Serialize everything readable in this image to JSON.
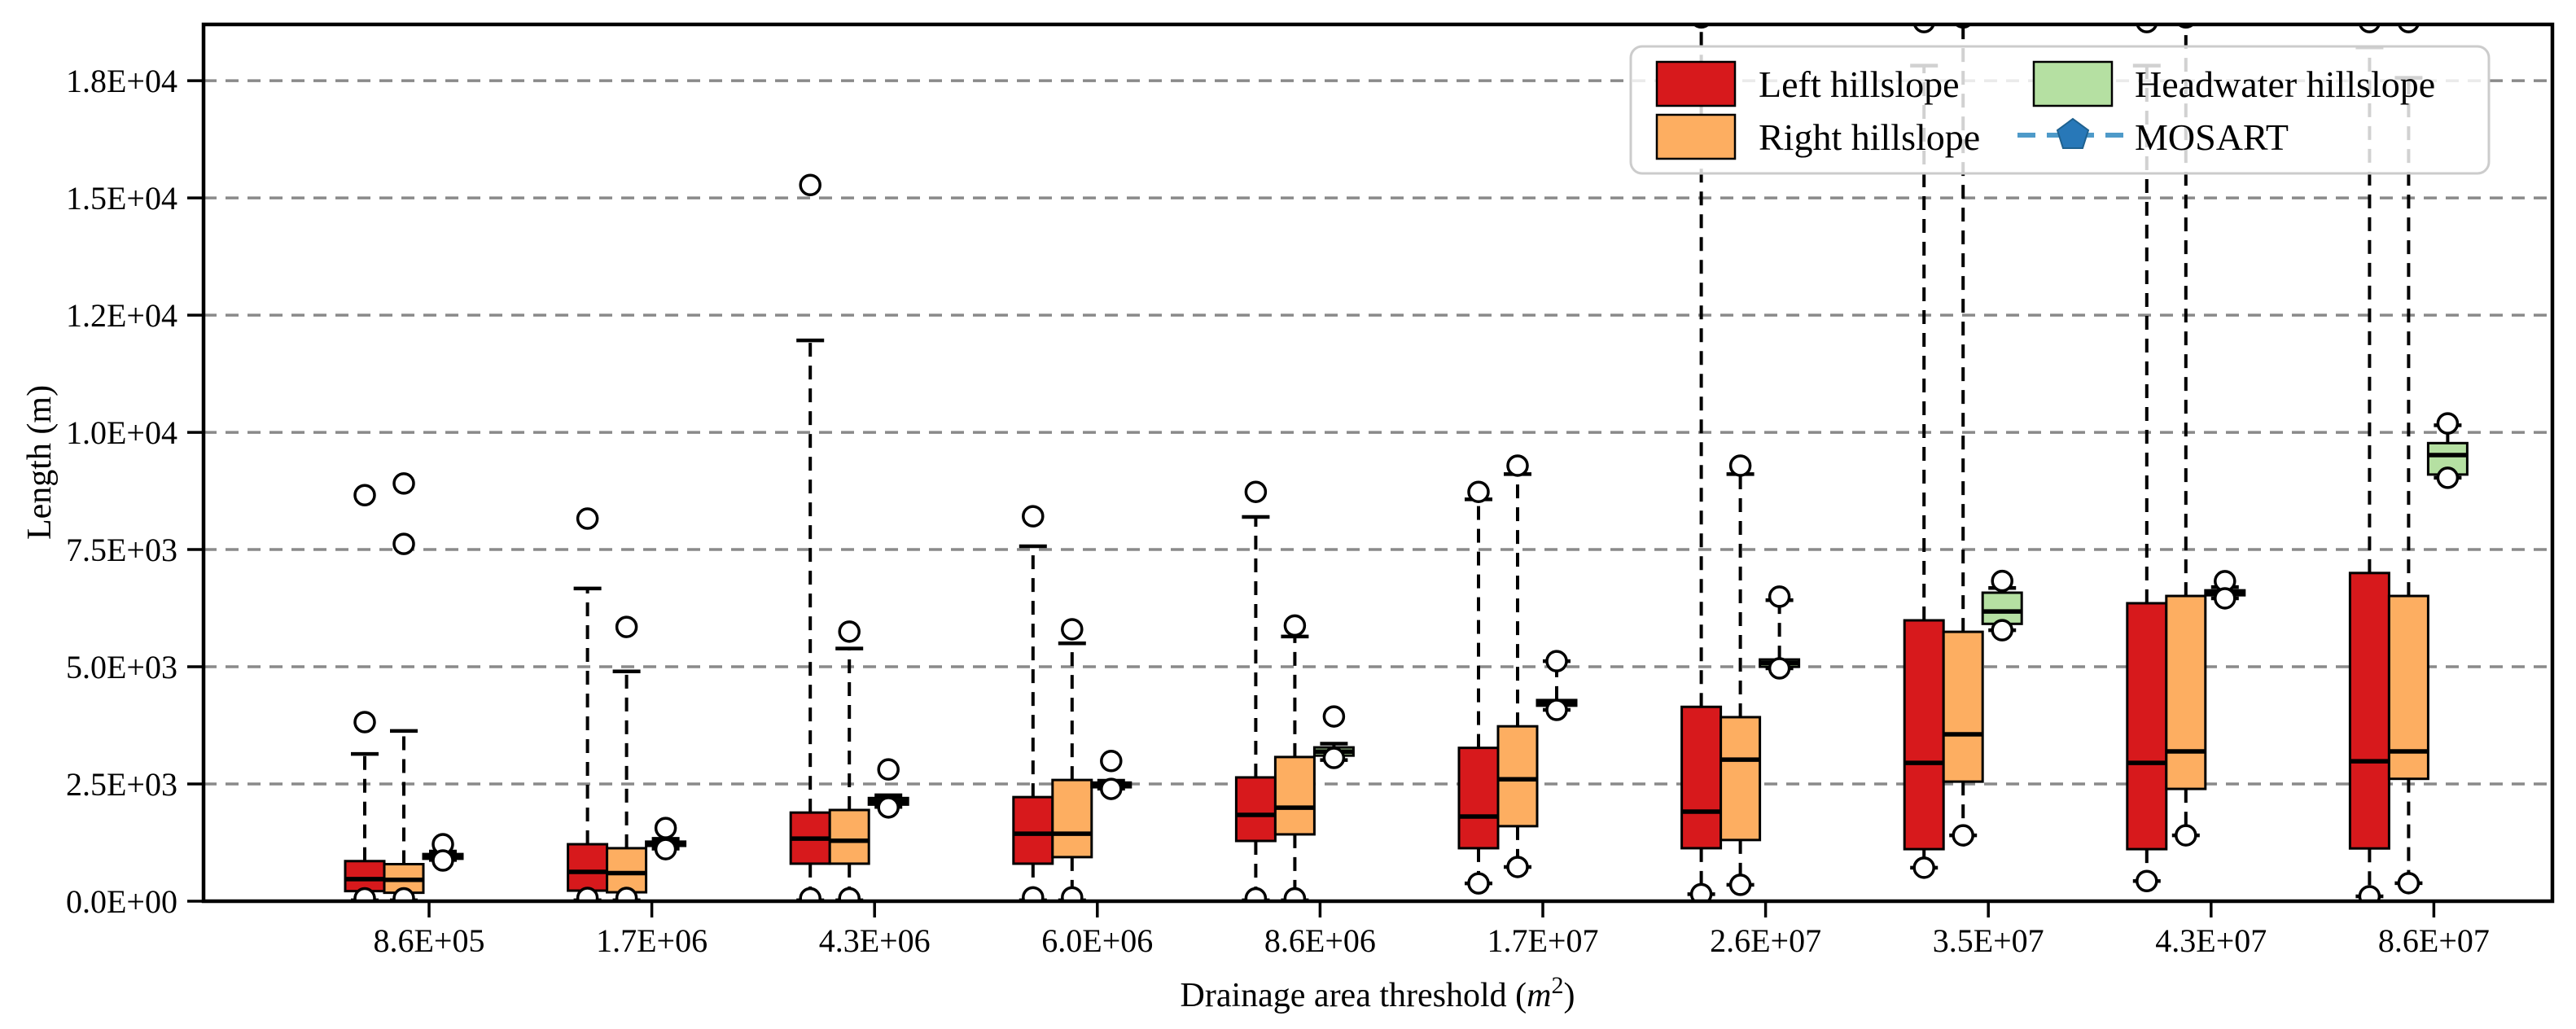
{
  "figure": {
    "background": "#ffffff",
    "frame_color": "#000000",
    "grid_color": "#8a8a8a"
  },
  "labels": {
    "ylabel": "Length (m)",
    "xlabel_prefix": "Drainage area threshold (",
    "xlabel_var": "m",
    "xlabel_sup": "2",
    "xlabel_close": ")"
  },
  "legend": {
    "items": [
      {
        "label": "Left hillslope",
        "swatch": "red-box-swatch",
        "color": "#d7191c"
      },
      {
        "label": "Right hillslope",
        "swatch": "orange-box-swatch",
        "color": "#fdae61"
      },
      {
        "label": "Headwater hillslope",
        "swatch": "green-box-swatch",
        "color": "#b5e0a2"
      },
      {
        "label": "MOSART",
        "swatch": "pentagon-marker",
        "color": "#2878b8",
        "line_color": "#4e9ac9"
      }
    ]
  },
  "chart_data": {
    "type": "boxplot",
    "title": "",
    "xlabel": "Drainage area threshold (m2)",
    "ylabel": "Length (m)",
    "ylim": [
      0,
      18700
    ],
    "grid": true,
    "legend_position": "upper right",
    "yticks": [
      {
        "v": 0,
        "label": "0.0E+00"
      },
      {
        "v": 2500,
        "label": "2.5E+03"
      },
      {
        "v": 5000,
        "label": "5.0E+03"
      },
      {
        "v": 7500,
        "label": "7.5E+03"
      },
      {
        "v": 10000,
        "label": "1.0E+04"
      },
      {
        "v": 12500,
        "label": "1.2E+04"
      },
      {
        "v": 15000,
        "label": "1.5E+04"
      },
      {
        "v": 17500,
        "label": "1.8E+04"
      }
    ],
    "categories": [
      "8.6E+05",
      "1.7E+06",
      "4.3E+06",
      "6.0E+06",
      "8.6E+06",
      "1.7E+07",
      "2.6E+07",
      "3.5E+07",
      "4.3E+07",
      "8.6E+07"
    ],
    "series": [
      {
        "name": "Left hillslope",
        "color": "#d7191c",
        "offset": -79,
        "boxes": [
          {
            "lo": 20,
            "q1": 215,
            "med": 470,
            "q3": 855,
            "hi": 3140,
            "fliers": [
              3820,
              8660,
              60
            ]
          },
          {
            "lo": 20,
            "q1": 225,
            "med": 625,
            "q3": 1215,
            "hi": 6670,
            "fliers": [
              8160,
              70
            ]
          },
          {
            "lo": 20,
            "q1": 800,
            "med": 1335,
            "q3": 1890,
            "hi": 11960,
            "fliers": [
              15275,
              60
            ]
          },
          {
            "lo": 20,
            "q1": 800,
            "med": 1440,
            "q3": 2220,
            "hi": 7570,
            "fliers": [
              8210,
              80
            ]
          },
          {
            "lo": 20,
            "q1": 1285,
            "med": 1840,
            "q3": 2640,
            "hi": 8195,
            "fliers": [
              8730,
              60
            ]
          },
          {
            "lo": 380,
            "q1": 1130,
            "med": 1805,
            "q3": 3270,
            "hi": 8570,
            "fliers": [
              8730,
              380
            ]
          },
          {
            "lo": 150,
            "q1": 1130,
            "med": 1910,
            "q3": 4145,
            "hi": 18720,
            "fliers": [
              18850,
              150
            ]
          },
          {
            "lo": 715,
            "q1": 1110,
            "med": 2950,
            "q3": 5990,
            "hi": 17820,
            "fliers": [
              18750,
              715
            ]
          },
          {
            "lo": 430,
            "q1": 1110,
            "med": 2950,
            "q3": 6355,
            "hi": 17820,
            "fliers": [
              18750,
              430
            ]
          },
          {
            "lo": 105,
            "q1": 1125,
            "med": 2985,
            "q3": 7000,
            "hi": 18210,
            "fliers": [
              18750,
              105
            ]
          }
        ]
      },
      {
        "name": "Right hillslope",
        "color": "#fdae61",
        "offset": -31,
        "boxes": [
          {
            "lo": 20,
            "q1": 180,
            "med": 455,
            "q3": 790,
            "hi": 3630,
            "fliers": [
              7620,
              8910,
              60
            ]
          },
          {
            "lo": 20,
            "q1": 190,
            "med": 600,
            "q3": 1130,
            "hi": 4900,
            "fliers": [
              5850,
              70
            ]
          },
          {
            "lo": 20,
            "q1": 800,
            "med": 1290,
            "q3": 1945,
            "hi": 5390,
            "fliers": [
              5750,
              60
            ]
          },
          {
            "lo": 20,
            "q1": 940,
            "med": 1440,
            "q3": 2585,
            "hi": 5500,
            "fliers": [
              5800,
              80
            ]
          },
          {
            "lo": 20,
            "q1": 1425,
            "med": 1995,
            "q3": 3075,
            "hi": 5645,
            "fliers": [
              5880,
              60
            ]
          },
          {
            "lo": 730,
            "q1": 1600,
            "med": 2600,
            "q3": 3730,
            "hi": 9110,
            "fliers": [
              9290,
              730
            ]
          },
          {
            "lo": 350,
            "q1": 1305,
            "med": 3020,
            "q3": 3925,
            "hi": 9110,
            "fliers": [
              9290,
              350
            ]
          },
          {
            "lo": 1405,
            "q1": 2550,
            "med": 3560,
            "q3": 5745,
            "hi": 18720,
            "fliers": [
              18850,
              1405
            ]
          },
          {
            "lo": 1405,
            "q1": 2395,
            "med": 3195,
            "q3": 6510,
            "hi": 18720,
            "fliers": [
              18850,
              1405
            ]
          },
          {
            "lo": 385,
            "q1": 2610,
            "med": 3195,
            "q3": 6510,
            "hi": 17560,
            "fliers": [
              18750,
              385
            ]
          }
        ]
      },
      {
        "name": "Headwater hillslope",
        "color": "#b5e0a2",
        "offset": 17,
        "boxes": [
          {
            "lo": 880,
            "q1": 905,
            "med": 950,
            "q3": 1005,
            "hi": 1060,
            "fliers": [
              1215,
              868
            ]
          },
          {
            "lo": 1120,
            "q1": 1180,
            "med": 1230,
            "q3": 1270,
            "hi": 1330,
            "fliers": [
              1560,
              1110
            ]
          },
          {
            "lo": 2010,
            "q1": 2060,
            "med": 2130,
            "q3": 2200,
            "hi": 2260,
            "fliers": [
              2810,
              2000
            ]
          },
          {
            "lo": 2400,
            "q1": 2430,
            "med": 2480,
            "q3": 2530,
            "hi": 2570,
            "fliers": [
              2990,
              2395
            ]
          },
          {
            "lo": 3010,
            "q1": 3105,
            "med": 3190,
            "q3": 3280,
            "hi": 3360,
            "fliers": [
              3940,
              3055
            ]
          },
          {
            "lo": 4080,
            "q1": 4170,
            "med": 4230,
            "q3": 4290,
            "hi": 5120,
            "fliers": [
              5120,
              4080
            ]
          },
          {
            "lo": 4965,
            "q1": 5000,
            "med": 5080,
            "q3": 5155,
            "hi": 6420,
            "fliers": [
              6495,
              4965
            ]
          },
          {
            "lo": 5780,
            "q1": 5915,
            "med": 6180,
            "q3": 6580,
            "hi": 6680,
            "fliers": [
              6830,
              5780
            ]
          },
          {
            "lo": 6460,
            "q1": 6525,
            "med": 6570,
            "q3": 6630,
            "hi": 6700,
            "fliers": [
              6825,
              6460
            ]
          },
          {
            "lo": 9030,
            "q1": 9100,
            "med": 9515,
            "q3": 9770,
            "hi": 10150,
            "fliers": [
              10190,
              9030
            ]
          }
        ]
      },
      {
        "name": "MOSART",
        "type": "line",
        "color": "#2878b8",
        "line_color": "#4e9ac9",
        "marker": "pentagon",
        "values": []
      }
    ]
  }
}
